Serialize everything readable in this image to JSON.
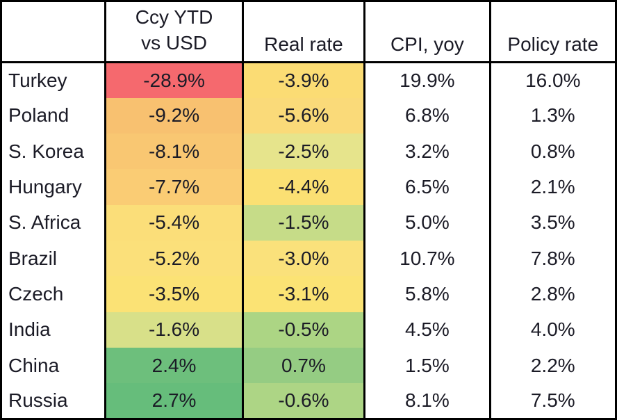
{
  "colors": {
    "border": "#000000",
    "text": "#1b1b26",
    "header_bg": "#ffffff",
    "scale_red": "#F5696E",
    "scale_yellow": "#FBE073",
    "scale_green": "#66BD7B"
  },
  "table": {
    "headers": {
      "country": "",
      "ccy_line1": "Ccy YTD",
      "ccy_line2": "vs USD",
      "real": "Real rate",
      "cpi": "CPI, yoy",
      "policy": "Policy rate"
    },
    "rows": [
      {
        "country": "Turkey",
        "ccy": {
          "value": "-28.9%",
          "bg": "#F5696E"
        },
        "real": {
          "value": "-3.9%",
          "bg": "#FBDC74"
        },
        "cpi": "19.9%",
        "policy": "16.0%"
      },
      {
        "country": "Poland",
        "ccy": {
          "value": "-9.2%",
          "bg": "#F8C170"
        },
        "real": {
          "value": "-5.6%",
          "bg": "#FADA79"
        },
        "cpi": "6.8%",
        "policy": "1.3%"
      },
      {
        "country": "S. Korea",
        "ccy": {
          "value": "-8.1%",
          "bg": "#F9C772"
        },
        "real": {
          "value": "-2.5%",
          "bg": "#E6E48C"
        },
        "cpi": "3.2%",
        "policy": "0.8%"
      },
      {
        "country": "Hungary",
        "ccy": {
          "value": "-7.7%",
          "bg": "#FACC74"
        },
        "real": {
          "value": "-4.4%",
          "bg": "#FBE073"
        },
        "cpi": "6.5%",
        "policy": "2.1%"
      },
      {
        "country": "S. Africa",
        "ccy": {
          "value": "-5.4%",
          "bg": "#FBDE79"
        },
        "real": {
          "value": "-1.5%",
          "bg": "#C6DC88"
        },
        "cpi": "5.0%",
        "policy": "3.5%"
      },
      {
        "country": "Brazil",
        "ccy": {
          "value": "-5.2%",
          "bg": "#FBE07A"
        },
        "real": {
          "value": "-3.0%",
          "bg": "#FAE17B"
        },
        "cpi": "10.7%",
        "policy": "7.8%"
      },
      {
        "country": "Czech",
        "ccy": {
          "value": "-3.5%",
          "bg": "#FBE275"
        },
        "real": {
          "value": "-3.1%",
          "bg": "#FBE374"
        },
        "cpi": "5.8%",
        "policy": "2.8%"
      },
      {
        "country": "India",
        "ccy": {
          "value": "-1.6%",
          "bg": "#D8E089"
        },
        "real": {
          "value": "-0.5%",
          "bg": "#ACD584"
        },
        "cpi": "4.5%",
        "policy": "4.0%"
      },
      {
        "country": "China",
        "ccy": {
          "value": "2.4%",
          "bg": "#6DBF7C"
        },
        "real": {
          "value": "0.7%",
          "bg": "#95CC83"
        },
        "cpi": "1.5%",
        "policy": "2.2%"
      },
      {
        "country": "Russia",
        "ccy": {
          "value": "2.7%",
          "bg": "#66BD7B"
        },
        "real": {
          "value": "-0.6%",
          "bg": "#ADD585"
        },
        "cpi": "8.1%",
        "policy": "7.5%"
      }
    ]
  },
  "chart_data": {
    "type": "table",
    "subtype": "heatmap",
    "columns": [
      "Country",
      "Ccy YTD vs USD",
      "Real rate",
      "CPI, yoy",
      "Policy rate"
    ],
    "units": "percent",
    "heatmap_columns": [
      "Ccy YTD vs USD",
      "Real rate"
    ],
    "color_scale": "red-yellow-green",
    "rows": [
      [
        "Turkey",
        -28.9,
        -3.9,
        19.9,
        16.0
      ],
      [
        "Poland",
        -9.2,
        -5.6,
        6.8,
        1.3
      ],
      [
        "S. Korea",
        -8.1,
        -2.5,
        3.2,
        0.8
      ],
      [
        "Hungary",
        -7.7,
        -4.4,
        6.5,
        2.1
      ],
      [
        "S. Africa",
        -5.4,
        -1.5,
        5.0,
        3.5
      ],
      [
        "Brazil",
        -5.2,
        -3.0,
        10.7,
        7.8
      ],
      [
        "Czech",
        -3.5,
        -3.1,
        5.8,
        2.8
      ],
      [
        "India",
        -1.6,
        -0.5,
        4.5,
        4.0
      ],
      [
        "China",
        2.4,
        0.7,
        1.5,
        2.2
      ],
      [
        "Russia",
        2.7,
        -0.6,
        8.1,
        7.5
      ]
    ]
  }
}
